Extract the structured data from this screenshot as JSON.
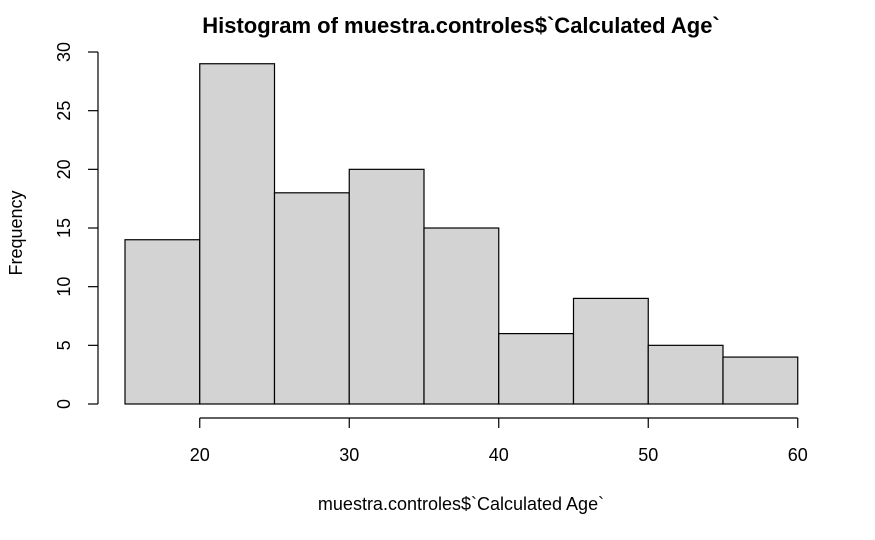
{
  "chart_data": {
    "type": "bar",
    "title": "Histogram of muestra.controles$`Calculated Age`",
    "xlabel": "muestra.controles$`Calculated Age`",
    "ylabel": "Frequency",
    "bins": [
      {
        "from": 15,
        "to": 20,
        "count": 14
      },
      {
        "from": 20,
        "to": 25,
        "count": 29
      },
      {
        "from": 25,
        "to": 30,
        "count": 18
      },
      {
        "from": 30,
        "to": 35,
        "count": 20
      },
      {
        "from": 35,
        "to": 40,
        "count": 15
      },
      {
        "from": 40,
        "to": 45,
        "count": 6
      },
      {
        "from": 45,
        "to": 50,
        "count": 9
      },
      {
        "from": 50,
        "to": 55,
        "count": 5
      },
      {
        "from": 55,
        "to": 60,
        "count": 4
      }
    ],
    "x_ticks": [
      20,
      30,
      40,
      50,
      60
    ],
    "y_ticks": [
      0,
      5,
      10,
      15,
      20,
      25,
      30
    ],
    "xlim": [
      15,
      60
    ],
    "ylim": [
      0,
      30
    ],
    "bar_fill": "#d3d3d3",
    "bar_stroke": "#000000",
    "grid": false
  }
}
